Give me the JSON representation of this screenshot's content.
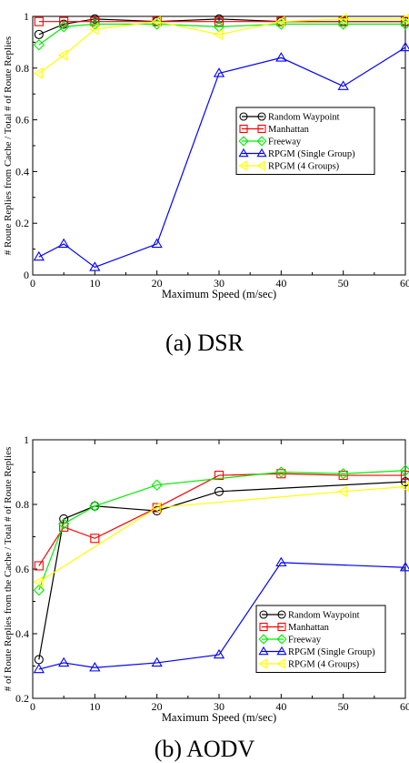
{
  "chart_data": [
    {
      "type": "line",
      "caption": "(a) DSR",
      "xlabel": "Maximum Speed (m/sec)",
      "ylabel": "# Route Replies from Cache / Total # of Route Replies",
      "xlim": [
        0,
        60
      ],
      "ylim": [
        0,
        1
      ],
      "xticks": [
        0,
        10,
        20,
        30,
        40,
        50,
        60
      ],
      "xtick_labels": [
        "0",
        "10",
        "20",
        "30",
        "40",
        "50",
        "60"
      ],
      "yticks": [
        0,
        0.2,
        0.4,
        0.6,
        0.8,
        1
      ],
      "ytick_labels": [
        "0",
        "0.2",
        "0.4",
        "0.6",
        "0.8",
        "1"
      ],
      "grid": false,
      "legend_position": "center-right",
      "series": [
        {
          "name": "Random Waypoint",
          "color": "#000000",
          "marker": "circle",
          "x": [
            1,
            5,
            10,
            20,
            30,
            40,
            50,
            60
          ],
          "y": [
            0.93,
            0.97,
            0.99,
            0.98,
            0.99,
            0.98,
            0.98,
            0.98
          ]
        },
        {
          "name": "Manhattan",
          "color": "#ff0000",
          "marker": "square",
          "x": [
            1,
            5,
            10,
            20,
            30,
            40,
            50,
            60
          ],
          "y": [
            0.98,
            0.98,
            0.98,
            0.98,
            0.98,
            0.98,
            0.98,
            0.98
          ]
        },
        {
          "name": "Freeway",
          "color": "#00ee00",
          "marker": "diamond",
          "x": [
            1,
            5,
            10,
            20,
            30,
            40,
            50,
            60
          ],
          "y": [
            0.89,
            0.96,
            0.97,
            0.97,
            0.96,
            0.97,
            0.97,
            0.97
          ]
        },
        {
          "name": "RPGM (Single Group)",
          "color": "#0000ff",
          "marker": "triangle",
          "x": [
            1,
            5,
            10,
            20,
            30,
            40,
            50,
            60
          ],
          "y": [
            0.07,
            0.12,
            0.03,
            0.12,
            0.78,
            0.84,
            0.73,
            0.88
          ]
        },
        {
          "name": "RPGM (4 Groups)",
          "color": "#ffff00",
          "marker": "triangle-left",
          "x": [
            1,
            5,
            10,
            20,
            30,
            40,
            50,
            60
          ],
          "y": [
            0.78,
            0.85,
            0.95,
            0.98,
            0.93,
            0.98,
            0.99,
            0.99
          ]
        }
      ]
    },
    {
      "type": "line",
      "caption": "(b) AODV",
      "xlabel": "Maximum Speed (m/sec)",
      "ylabel": "# of Route Replies from the Cache / Total # of Route Replies",
      "xlim": [
        0,
        60
      ],
      "ylim": [
        0.2,
        1
      ],
      "xticks": [
        0,
        10,
        20,
        30,
        40,
        50,
        60
      ],
      "xtick_labels": [
        "0",
        "10",
        "20",
        "30",
        "40",
        "50",
        "60"
      ],
      "yticks": [
        0.2,
        0.4,
        0.6,
        0.8,
        1
      ],
      "ytick_labels": [
        "0.2",
        "0.4",
        "0.6",
        "0.8",
        "1"
      ],
      "grid": false,
      "legend_position": "bottom-right",
      "series": [
        {
          "name": "Random Waypoint",
          "color": "#000000",
          "marker": "circle",
          "x": [
            1,
            5,
            10,
            20,
            30,
            60
          ],
          "y": [
            0.32,
            0.755,
            0.795,
            0.78,
            0.84,
            0.87
          ]
        },
        {
          "name": "Manhattan",
          "color": "#ff0000",
          "marker": "square",
          "x": [
            1,
            5,
            10,
            20,
            30,
            40,
            50,
            60
          ],
          "y": [
            0.61,
            0.73,
            0.695,
            0.79,
            0.89,
            0.895,
            0.89,
            0.89
          ]
        },
        {
          "name": "Freeway",
          "color": "#00ee00",
          "marker": "diamond",
          "x": [
            1,
            5,
            10,
            20,
            40,
            50,
            60
          ],
          "y": [
            0.535,
            0.74,
            0.795,
            0.86,
            0.9,
            0.895,
            0.905
          ]
        },
        {
          "name": "RPGM (Single Group)",
          "color": "#0000ff",
          "marker": "triangle",
          "x": [
            1,
            5,
            10,
            20,
            30,
            40,
            60
          ],
          "y": [
            0.29,
            0.31,
            0.295,
            0.31,
            0.335,
            0.62,
            0.605
          ]
        },
        {
          "name": "RPGM (4 Groups)",
          "color": "#ffff00",
          "marker": "triangle-left",
          "x": [
            1,
            20,
            50,
            60
          ],
          "y": [
            0.56,
            0.79,
            0.84,
            0.855
          ]
        }
      ]
    }
  ]
}
